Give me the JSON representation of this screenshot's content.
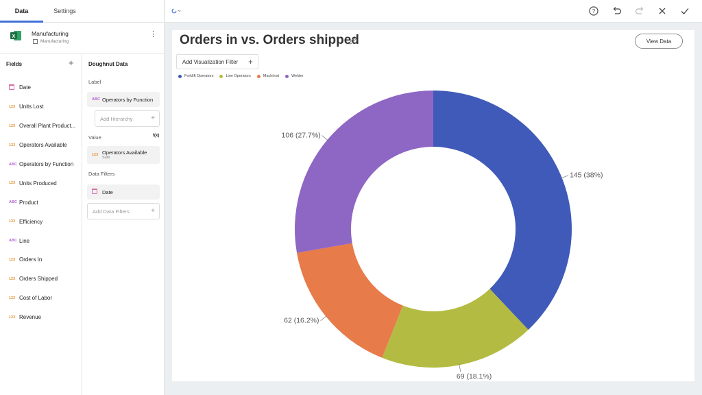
{
  "tabs": [
    {
      "label": "Data",
      "active": true
    },
    {
      "label": "Settings",
      "active": false
    }
  ],
  "datasource": {
    "name": "Manufacturing",
    "subtitle": "Manufacturing",
    "icon": "excel-icon"
  },
  "fields": {
    "title": "Fields",
    "items": [
      {
        "label": "Date",
        "type": "date"
      },
      {
        "label": "Units Lost",
        "type": "number"
      },
      {
        "label": "Overall Plant Product...",
        "type": "number"
      },
      {
        "label": "Operators Available",
        "type": "number"
      },
      {
        "label": "Operators by Function",
        "type": "text"
      },
      {
        "label": "Units Produced",
        "type": "number"
      },
      {
        "label": "Product",
        "type": "text"
      },
      {
        "label": "Efficiency",
        "type": "number"
      },
      {
        "label": "Line",
        "type": "text"
      },
      {
        "label": "Orders In",
        "type": "number"
      },
      {
        "label": "Orders Shipped",
        "type": "number"
      },
      {
        "label": "Cost of Labor",
        "type": "number"
      },
      {
        "label": "Revenue",
        "type": "number"
      }
    ],
    "type_badges": {
      "number": "123",
      "text": "ABC"
    }
  },
  "config": {
    "title": "Doughnut Data",
    "label_section": "Label",
    "label_field": "Operators by Function",
    "add_hierarchy": "Add Hierarchy",
    "value_section": "Value",
    "value_field": "Operators Available",
    "value_agg": "Sum",
    "format_icon": "f(x)",
    "filters_section": "Data Filters",
    "filter_field": "Date",
    "add_filters": "Add Data Filters"
  },
  "toolbar": {
    "icons": [
      "loading-logo-icon",
      "help-icon",
      "undo-icon",
      "redo-icon",
      "close-icon",
      "check-icon"
    ]
  },
  "visualization": {
    "title": "Orders in vs. Orders shipped",
    "view_data_label": "View Data",
    "add_filter_label": "Add Visualization Filter"
  },
  "chart_data": {
    "type": "pie",
    "variant": "doughnut",
    "categories": [
      "Forklift Operators",
      "Line Operators",
      "Machinist",
      "Welder"
    ],
    "values": [
      145,
      69,
      62,
      106
    ],
    "labels": [
      "145 (38%)",
      "69 (18.1%)",
      "62 (16.2%)",
      "106 (27.7%)"
    ],
    "colors": [
      "#3f5ab8",
      "#b4bb42",
      "#e77b4a",
      "#8e66c4"
    ],
    "legend_position": "top-left"
  }
}
